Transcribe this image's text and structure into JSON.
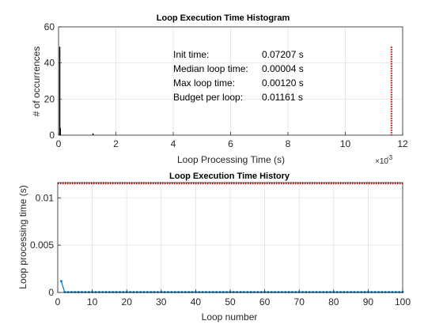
{
  "chart_data": [
    {
      "type": "histogram",
      "title": "Loop Execution Time Histogram",
      "xlabel": "Loop Processing Time (s)",
      "ylabel": "# of occurrences",
      "xlim": [
        0,
        0.012
      ],
      "ylim": [
        0,
        60
      ],
      "x_ticks": [
        0,
        0.002,
        0.004,
        0.006,
        0.008,
        0.01,
        0.012
      ],
      "x_tick_labels": [
        "0",
        "2",
        "4",
        "6",
        "8",
        "10",
        "12"
      ],
      "x_exponent_label": "×10",
      "x_exponent_power": "-3",
      "y_ticks": [
        0,
        20,
        40,
        60
      ],
      "y_tick_labels": [
        "0",
        "20",
        "40",
        "60"
      ],
      "grid": true,
      "bars": [
        {
          "x": 4e-05,
          "count": 49
        },
        {
          "x": 6e-05,
          "count": 4
        },
        {
          "x": 0.0012,
          "count": 1
        }
      ],
      "budget_line": {
        "x": 0.01161,
        "y_top": 49,
        "color": "#cc0000",
        "style": "dotted"
      },
      "stats": [
        {
          "label": "Init time:",
          "value": "0.07207 s"
        },
        {
          "label": "Median loop time:",
          "value": "0.00004 s"
        },
        {
          "label": "Max loop time:",
          "value": "0.00120 s"
        },
        {
          "label": "Budget per loop:",
          "value": "0.01161 s"
        }
      ]
    },
    {
      "type": "line",
      "title": "Loop Execution Time History",
      "xlabel": "Loop number",
      "ylabel": "Loop processing time (s)",
      "xlim": [
        0,
        100
      ],
      "ylim": [
        0,
        0.01161
      ],
      "x_ticks": [
        0,
        10,
        20,
        30,
        40,
        50,
        60,
        70,
        80,
        90,
        100
      ],
      "x_tick_labels": [
        "0",
        "10",
        "20",
        "30",
        "40",
        "50",
        "60",
        "70",
        "80",
        "90",
        "100"
      ],
      "y_ticks": [
        0,
        0.005,
        0.01
      ],
      "y_tick_labels": [
        "0",
        "0.005",
        "0.01"
      ],
      "grid": true,
      "series": [
        {
          "color": "#0072bd",
          "marker": "dot",
          "first_point": [
            1,
            0.0012
          ],
          "rest_value": 4e-05,
          "x_range": [
            2,
            100
          ]
        }
      ],
      "budget_line": {
        "y": 0.01161,
        "color": "#cc0000",
        "style": "dotted"
      }
    }
  ]
}
